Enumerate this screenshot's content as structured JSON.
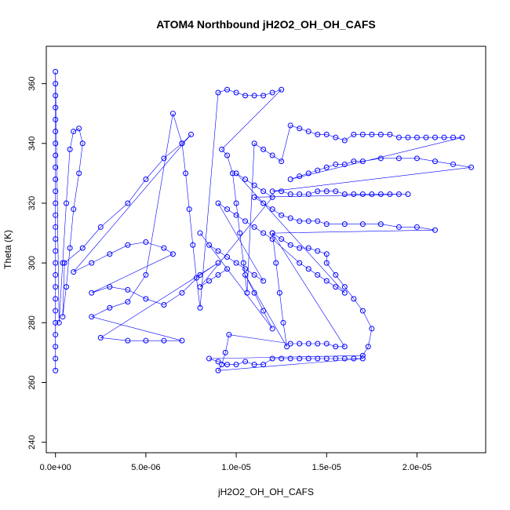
{
  "chart_data": {
    "type": "scatter",
    "title": "ATOM4 Northbound jH2O2_OH_OH_CAFS",
    "xlabel": "jH2O2_OH_OH_CAFS",
    "ylabel": "Theta (K)",
    "xlim": [
      -5.08e-07,
      2.38e-05
    ],
    "ylim": [
      236.5,
      372.5
    ],
    "xticks": [
      0,
      5e-06,
      1e-05,
      1.5e-05,
      2e-05
    ],
    "xtick_labels": [
      "0.0e+00",
      "5.0e-06",
      "1.0e-05",
      "1.5e-05",
      "2.0e-05"
    ],
    "yticks": [
      240,
      260,
      280,
      300,
      320,
      340,
      360
    ],
    "ytick_labels": [
      "240",
      "260",
      "280",
      "300",
      "320",
      "340",
      "360"
    ],
    "grid": false,
    "legend": "none",
    "marker_color": "#0000ff",
    "series": [
      {
        "values": [
          [
            0,
            264
          ],
          [
            0,
            268
          ],
          [
            0,
            272
          ],
          [
            0,
            276
          ],
          [
            0,
            280
          ],
          [
            0,
            284
          ],
          [
            0,
            288
          ],
          [
            0,
            292
          ],
          [
            0,
            296
          ],
          [
            0,
            300
          ],
          [
            0,
            304
          ],
          [
            0,
            308
          ],
          [
            0,
            312
          ],
          [
            0,
            316
          ],
          [
            0,
            320
          ],
          [
            0,
            324
          ],
          [
            0,
            328
          ],
          [
            0,
            332
          ],
          [
            0,
            336
          ],
          [
            0,
            340
          ],
          [
            0,
            344
          ],
          [
            0,
            348
          ],
          [
            0,
            352
          ],
          [
            0,
            356
          ],
          [
            0,
            360
          ],
          [
            0,
            364
          ],
          [
            2e-07,
            280
          ],
          [
            4e-07,
            300
          ],
          [
            6e-07,
            320
          ],
          [
            8e-07,
            338
          ],
          [
            1e-06,
            344
          ],
          [
            1.3e-06,
            345
          ],
          [
            1.5e-06,
            340
          ],
          [
            1.3e-06,
            330
          ],
          [
            1e-06,
            318
          ],
          [
            8e-07,
            305
          ],
          [
            6e-07,
            292
          ],
          [
            4e-07,
            282
          ],
          [
            5e-07,
            300
          ],
          [
            1.5e-06,
            305
          ],
          [
            2.5e-06,
            312
          ],
          [
            4e-06,
            320
          ],
          [
            5e-06,
            328
          ],
          [
            6e-06,
            335
          ],
          [
            7e-06,
            340
          ],
          [
            7.5e-06,
            343
          ],
          [
            1e-06,
            297
          ],
          [
            2e-06,
            300
          ],
          [
            3e-06,
            303
          ],
          [
            4e-06,
            306
          ],
          [
            5e-06,
            307
          ],
          [
            6e-06,
            305
          ],
          [
            6.5e-06,
            303
          ],
          [
            2e-06,
            290
          ],
          [
            3e-06,
            292
          ],
          [
            4e-06,
            291
          ],
          [
            5e-06,
            288
          ],
          [
            6e-06,
            286
          ],
          [
            7e-06,
            290
          ],
          [
            8e-06,
            296
          ],
          [
            9e-06,
            300
          ],
          [
            2.5e-06,
            275
          ],
          [
            4e-06,
            274
          ],
          [
            5e-06,
            274
          ],
          [
            6e-06,
            274
          ],
          [
            7e-06,
            274
          ],
          [
            2e-06,
            282
          ],
          [
            3e-06,
            285
          ],
          [
            4e-06,
            287
          ],
          [
            5e-06,
            296
          ],
          [
            6.5e-06,
            350
          ],
          [
            7e-06,
            340
          ],
          [
            7.2e-06,
            330
          ],
          [
            7.4e-06,
            318
          ],
          [
            7.6e-06,
            306
          ],
          [
            7.8e-06,
            295
          ],
          [
            8e-06,
            285
          ],
          [
            9e-06,
            357
          ],
          [
            9.5e-06,
            358
          ],
          [
            1e-05,
            357
          ],
          [
            1.05e-05,
            356
          ],
          [
            1.1e-05,
            356
          ],
          [
            1.15e-05,
            356
          ],
          [
            1.2e-05,
            357
          ],
          [
            1.25e-05,
            358
          ],
          [
            9.2e-06,
            338
          ],
          [
            9.5e-06,
            336
          ],
          [
            9.8e-06,
            330
          ],
          [
            1e-05,
            320
          ],
          [
            1.02e-05,
            310
          ],
          [
            1.04e-05,
            300
          ],
          [
            1.06e-05,
            290
          ],
          [
            1.1e-05,
            340
          ],
          [
            1.15e-05,
            338
          ],
          [
            1.2e-05,
            336
          ],
          [
            1.25e-05,
            334
          ],
          [
            1.3e-05,
            346
          ],
          [
            1.35e-05,
            345
          ],
          [
            1.4e-05,
            344
          ],
          [
            1.45e-05,
            343
          ],
          [
            1.5e-05,
            343
          ],
          [
            1.55e-05,
            342
          ],
          [
            1.6e-05,
            341
          ],
          [
            1.65e-05,
            343
          ],
          [
            1.7e-05,
            343
          ],
          [
            1.75e-05,
            343
          ],
          [
            1.8e-05,
            343
          ],
          [
            1.85e-05,
            343
          ],
          [
            1.9e-05,
            342
          ],
          [
            1.95e-05,
            342
          ],
          [
            2e-05,
            342
          ],
          [
            2.05e-05,
            342
          ],
          [
            2.1e-05,
            342
          ],
          [
            2.15e-05,
            342
          ],
          [
            2.2e-05,
            342
          ],
          [
            2.25e-05,
            342
          ],
          [
            1.3e-05,
            328
          ],
          [
            1.35e-05,
            329
          ],
          [
            1.4e-05,
            330
          ],
          [
            1.45e-05,
            331
          ],
          [
            1.5e-05,
            332
          ],
          [
            1.55e-05,
            333
          ],
          [
            1.6e-05,
            333
          ],
          [
            1.65e-05,
            334
          ],
          [
            1.7e-05,
            334
          ],
          [
            1.8e-05,
            335
          ],
          [
            1.9e-05,
            335
          ],
          [
            2e-05,
            335
          ],
          [
            2.1e-05,
            334
          ],
          [
            2.2e-05,
            333
          ],
          [
            2.3e-05,
            332
          ],
          [
            1.2e-05,
            324
          ],
          [
            1.25e-05,
            324
          ],
          [
            1.3e-05,
            323
          ],
          [
            1.35e-05,
            323
          ],
          [
            1.4e-05,
            323
          ],
          [
            1.45e-05,
            324
          ],
          [
            1.5e-05,
            324
          ],
          [
            1.55e-05,
            324
          ],
          [
            1.6e-05,
            323
          ],
          [
            1.65e-05,
            323
          ],
          [
            1.7e-05,
            323
          ],
          [
            1.75e-05,
            323
          ],
          [
            1.8e-05,
            323
          ],
          [
            1.85e-05,
            323
          ],
          [
            1.9e-05,
            323
          ],
          [
            1.95e-05,
            323
          ],
          [
            1.1e-05,
            322
          ],
          [
            1.15e-05,
            320
          ],
          [
            1.2e-05,
            318
          ],
          [
            1.25e-05,
            316
          ],
          [
            1.3e-05,
            315
          ],
          [
            1.35e-05,
            314
          ],
          [
            1.4e-05,
            314
          ],
          [
            1.45e-05,
            314
          ],
          [
            1.5e-05,
            313
          ],
          [
            1.6e-05,
            313
          ],
          [
            1.7e-05,
            313
          ],
          [
            1.8e-05,
            313
          ],
          [
            1.9e-05,
            312
          ],
          [
            2e-05,
            312
          ],
          [
            2.1e-05,
            311
          ],
          [
            1.2e-05,
            310
          ],
          [
            1.25e-05,
            308
          ],
          [
            1.3e-05,
            306
          ],
          [
            1.35e-05,
            305
          ],
          [
            1.4e-05,
            305
          ],
          [
            1.45e-05,
            304
          ],
          [
            1.5e-05,
            303
          ],
          [
            1.5e-05,
            300
          ],
          [
            1.55e-05,
            296
          ],
          [
            1.6e-05,
            292
          ],
          [
            1.65e-05,
            288
          ],
          [
            1.7e-05,
            284
          ],
          [
            1.75e-05,
            278
          ],
          [
            1.73e-05,
            272
          ],
          [
            1.7e-05,
            269
          ],
          [
            8.5e-06,
            268
          ],
          [
            9e-06,
            267
          ],
          [
            9.5e-06,
            266
          ],
          [
            1e-05,
            266
          ],
          [
            1.05e-05,
            267
          ],
          [
            1.1e-05,
            266
          ],
          [
            1.15e-05,
            266
          ],
          [
            1.2e-05,
            268
          ],
          [
            1.25e-05,
            268
          ],
          [
            1.3e-05,
            268
          ],
          [
            1.35e-05,
            268
          ],
          [
            1.4e-05,
            268
          ],
          [
            1.45e-05,
            268
          ],
          [
            1.5e-05,
            268
          ],
          [
            1.55e-05,
            268
          ],
          [
            1.6e-05,
            268
          ],
          [
            1.65e-05,
            268
          ],
          [
            1.7e-05,
            268
          ],
          [
            9e-06,
            264
          ],
          [
            9.2e-06,
            266
          ],
          [
            9.4e-06,
            270
          ],
          [
            9.6e-06,
            276
          ],
          [
            1.3e-05,
            273
          ],
          [
            1.35e-05,
            273
          ],
          [
            1.4e-05,
            273
          ],
          [
            1.45e-05,
            273
          ],
          [
            1.5e-05,
            273
          ],
          [
            1.55e-05,
            272
          ],
          [
            1.6e-05,
            272
          ],
          [
            1.2e-05,
            310
          ],
          [
            1.22e-05,
            300
          ],
          [
            1.24e-05,
            290
          ],
          [
            1.26e-05,
            280
          ],
          [
            1.28e-05,
            272
          ],
          [
            1.05e-05,
            296
          ],
          [
            1.1e-05,
            290
          ],
          [
            1.15e-05,
            284
          ],
          [
            1.2e-05,
            278
          ],
          [
            8e-06,
            310
          ],
          [
            8.5e-06,
            306
          ],
          [
            9e-06,
            304
          ],
          [
            9.5e-06,
            302
          ],
          [
            1e-05,
            300
          ],
          [
            1.05e-05,
            298
          ],
          [
            1.1e-05,
            296
          ],
          [
            1.15e-05,
            294
          ],
          [
            9e-06,
            320
          ],
          [
            9.5e-06,
            318
          ],
          [
            1e-05,
            316
          ],
          [
            1.05e-05,
            314
          ],
          [
            1.1e-05,
            312
          ],
          [
            1.15e-05,
            310
          ],
          [
            1.2e-05,
            308
          ],
          [
            1.35e-05,
            300
          ],
          [
            1.4e-05,
            298
          ],
          [
            1.45e-05,
            296
          ],
          [
            1.5e-05,
            294
          ],
          [
            1.55e-05,
            292
          ],
          [
            1.6e-05,
            290
          ],
          [
            1e-05,
            330
          ],
          [
            1.05e-05,
            328
          ],
          [
            1.1e-05,
            326
          ],
          [
            1.15e-05,
            324
          ],
          [
            1.2e-05,
            322
          ],
          [
            8e-06,
            292
          ],
          [
            8.5e-06,
            294
          ],
          [
            9e-06,
            296
          ],
          [
            9.5e-06,
            298
          ]
        ]
      }
    ]
  }
}
